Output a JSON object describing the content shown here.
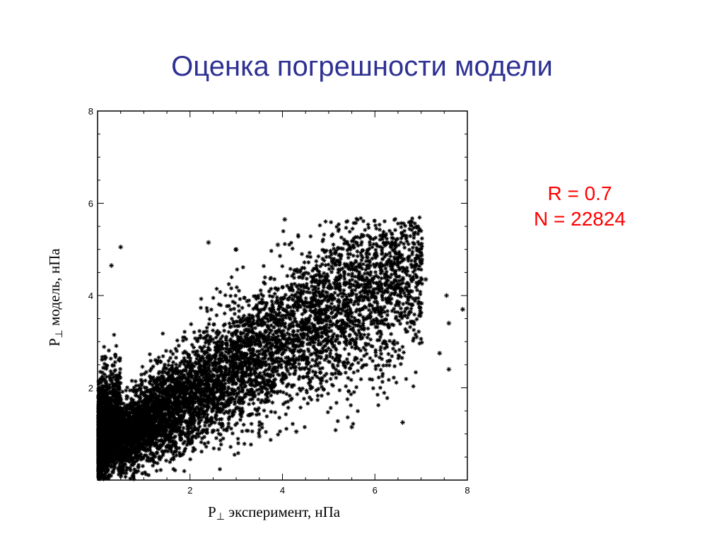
{
  "slide": {
    "title": "Оценка погрешности модели",
    "stats": {
      "r_label": "R = 0.7",
      "n_label": "N = 22824"
    }
  },
  "chart_data": {
    "type": "scatter",
    "title": "",
    "xlabel": {
      "main": "P",
      "sub": "⊥",
      "rest": " эксперимент, нПа"
    },
    "ylabel": {
      "main": "P",
      "sub": "⊥",
      "rest": " модель, нПа"
    },
    "xlim": [
      0,
      8
    ],
    "ylim": [
      0,
      8
    ],
    "x_ticks": [
      2,
      4,
      6,
      8
    ],
    "y_ticks": [
      2,
      4,
      6,
      8
    ],
    "marker": "asterisk",
    "marker_color": "#000000",
    "grid": false,
    "correlation_r": 0.7,
    "n_points": 22824,
    "notable_points": [
      {
        "x": 4.05,
        "y": 5.65
      },
      {
        "x": 2.4,
        "y": 5.15
      },
      {
        "x": 0.5,
        "y": 5.05
      },
      {
        "x": 3.0,
        "y": 5.0
      },
      {
        "x": 3.9,
        "y": 5.1
      },
      {
        "x": 0.3,
        "y": 4.65
      },
      {
        "x": 5.9,
        "y": 4.65
      },
      {
        "x": 6.5,
        "y": 4.7
      },
      {
        "x": 6.8,
        "y": 4.35
      },
      {
        "x": 7.1,
        "y": 4.35
      },
      {
        "x": 7.55,
        "y": 4.0
      },
      {
        "x": 7.9,
        "y": 3.7
      },
      {
        "x": 7.6,
        "y": 3.4
      },
      {
        "x": 6.9,
        "y": 3.1
      },
      {
        "x": 7.4,
        "y": 2.75
      },
      {
        "x": 7.6,
        "y": 2.4
      },
      {
        "x": 6.6,
        "y": 1.25
      },
      {
        "x": 5.5,
        "y": 1.15
      },
      {
        "x": 4.3,
        "y": 1.05
      },
      {
        "x": 3.5,
        "y": 0.95
      }
    ]
  }
}
